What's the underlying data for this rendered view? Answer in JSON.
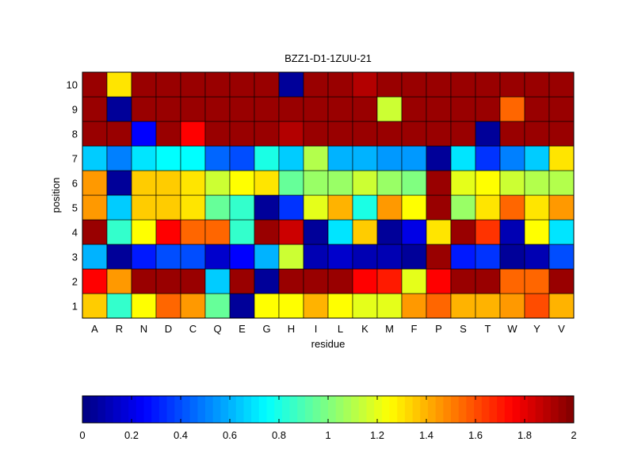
{
  "chart_data": {
    "type": "heatmap",
    "title": "BZZ1-D1-1ZUU-21",
    "xlabel": "residue",
    "ylabel": "position",
    "x_categories": [
      "A",
      "R",
      "N",
      "D",
      "C",
      "Q",
      "E",
      "G",
      "H",
      "I",
      "L",
      "K",
      "M",
      "F",
      "P",
      "S",
      "T",
      "W",
      "Y",
      "V"
    ],
    "y_categories": [
      "1",
      "2",
      "3",
      "4",
      "5",
      "6",
      "7",
      "8",
      "9",
      "10"
    ],
    "colormap": "jet",
    "clim": [
      0,
      2
    ],
    "colorbar": {
      "orientation": "horizontal",
      "placement": "bottom",
      "ticks": [
        0,
        0.2,
        0.4,
        0.6,
        0.8,
        1,
        1.2,
        1.4,
        1.6,
        1.8,
        2
      ],
      "tick_labels": [
        "0",
        "0.2",
        "0.4",
        "0.6",
        "0.8",
        "1",
        "1.2",
        "1.4",
        "1.6",
        "1.8",
        "2"
      ]
    },
    "values": [
      [
        1.35,
        0.85,
        1.25,
        1.55,
        1.45,
        0.95,
        0.05,
        1.25,
        1.25,
        1.4,
        1.25,
        1.2,
        1.2,
        1.45,
        1.55,
        1.4,
        1.4,
        1.45,
        1.6,
        1.4
      ],
      [
        1.75,
        1.45,
        1.95,
        1.95,
        1.95,
        0.65,
        1.95,
        0.05,
        1.95,
        1.95,
        1.95,
        1.75,
        1.7,
        1.2,
        1.75,
        1.95,
        1.95,
        1.55,
        1.55,
        1.95
      ],
      [
        0.6,
        0.05,
        0.3,
        0.4,
        0.4,
        0.15,
        0.25,
        0.6,
        1.15,
        0.1,
        0.15,
        0.1,
        0.1,
        0.05,
        1.95,
        0.3,
        0.35,
        0.05,
        0.1,
        0.4
      ],
      [
        1.95,
        0.85,
        1.25,
        1.75,
        1.55,
        1.55,
        0.85,
        1.95,
        1.85,
        0.05,
        0.7,
        1.35,
        0.05,
        0.2,
        1.3,
        1.95,
        1.65,
        0.1,
        1.25,
        0.7
      ],
      [
        1.45,
        0.65,
        1.35,
        1.35,
        1.3,
        0.95,
        0.85,
        0.05,
        0.35,
        1.2,
        1.4,
        0.8,
        1.45,
        1.25,
        1.95,
        1.05,
        1.3,
        1.55,
        1.3,
        1.45
      ],
      [
        1.45,
        0.05,
        1.35,
        1.35,
        1.3,
        1.15,
        1.25,
        1.3,
        0.95,
        1.05,
        1.05,
        1.15,
        1.05,
        1.0,
        1.95,
        1.2,
        1.25,
        1.15,
        1.1,
        1.1
      ],
      [
        0.65,
        0.5,
        0.7,
        0.75,
        0.75,
        0.45,
        0.4,
        0.8,
        0.65,
        1.1,
        0.6,
        0.6,
        0.55,
        0.55,
        0.05,
        0.7,
        0.35,
        0.5,
        0.65,
        1.3
      ],
      [
        1.95,
        1.95,
        0.25,
        1.95,
        1.75,
        1.95,
        1.95,
        1.95,
        1.9,
        1.95,
        1.95,
        1.95,
        1.95,
        1.95,
        1.95,
        1.95,
        0.05,
        1.95,
        1.95,
        1.95
      ],
      [
        1.95,
        0.05,
        1.95,
        1.95,
        1.95,
        1.95,
        1.95,
        1.95,
        1.95,
        1.95,
        1.95,
        1.95,
        1.15,
        1.95,
        1.95,
        1.95,
        1.95,
        1.55,
        1.95,
        1.95
      ],
      [
        1.95,
        1.3,
        1.95,
        1.95,
        1.95,
        1.95,
        1.95,
        1.95,
        0.05,
        1.95,
        1.95,
        1.9,
        1.95,
        1.95,
        1.95,
        1.95,
        1.95,
        1.95,
        1.95,
        1.95
      ]
    ]
  }
}
